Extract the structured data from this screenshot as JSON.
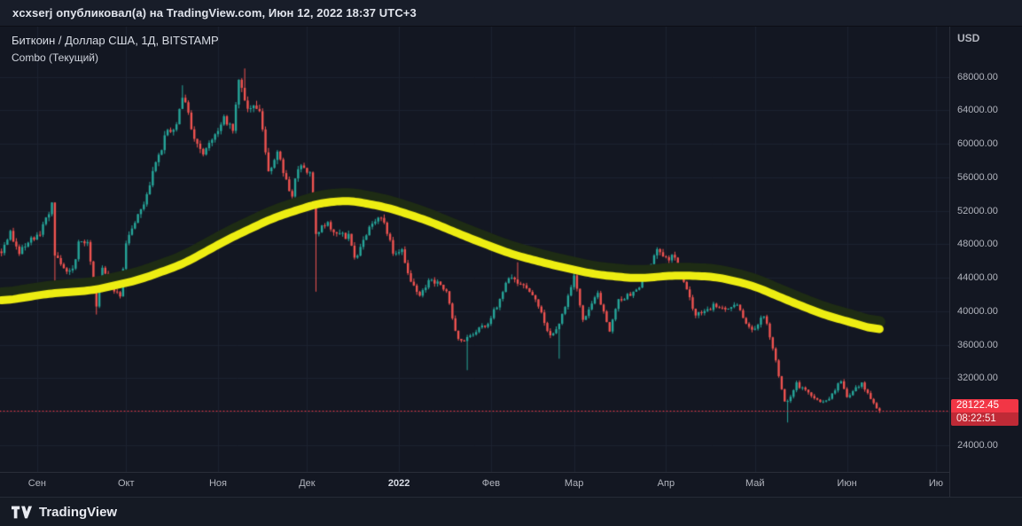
{
  "header": {
    "publication_text": "xcxserj опубликовал(а) на TradingView.com, Июн 12, 2022 18:37 UTC+3"
  },
  "legend": {
    "symbol_line": "Биткоин / Доллар США, 1Д, BITSTAMP",
    "indicator_line": "Combo (Текущий)"
  },
  "axes": {
    "currency": "USD",
    "last_price_label": "28122.45",
    "countdown": "08:22:51"
  },
  "footer": {
    "brand": "TradingView"
  },
  "colors": {
    "background": "#131722",
    "grid": "#1c2230",
    "up": "#26a69a",
    "down": "#ef5350",
    "price_line": "#f23645",
    "tag_bg": "#f23645",
    "tag_countdown_bg": "#bf2a36",
    "ma_yellow": "#eded12",
    "ma_dark": "#1e2c14",
    "axis_text": "#b2b5be",
    "text": "#d1d4dc",
    "border": "#2a2e39"
  },
  "chart_data": {
    "type": "candlestick",
    "title": "Биткоин / Доллар США, 1Д, BITSTAMP",
    "symbol": "Биткоин / Доллар США",
    "interval": "1Д",
    "exchange": "BITSTAMP",
    "indicator": "Combo (Текущий)",
    "currency": "USD",
    "last_price": 28122.45,
    "countdown": "08:22:51",
    "grid": true,
    "ylim": [
      20800,
      74000
    ],
    "y_ticks": [
      24000,
      28000,
      32000,
      36000,
      40000,
      44000,
      48000,
      52000,
      56000,
      60000,
      64000,
      68000
    ],
    "xlim": [
      "2021-08-20",
      "2022-07-05"
    ],
    "end_date": "2022-06-12",
    "x_months": [
      {
        "date": "2021-09-01",
        "label": "Сен"
      },
      {
        "date": "2021-10-01",
        "label": "Окт"
      },
      {
        "date": "2021-11-01",
        "label": "Ноя"
      },
      {
        "date": "2021-12-01",
        "label": "Дек"
      },
      {
        "date": "2022-01-01",
        "label": "2022",
        "year": true
      },
      {
        "date": "2022-02-01",
        "label": "Фев"
      },
      {
        "date": "2022-03-01",
        "label": "Мар"
      },
      {
        "date": "2022-04-01",
        "label": "Апр"
      },
      {
        "date": "2022-05-01",
        "label": "Май"
      },
      {
        "date": "2022-06-01",
        "label": "Июн"
      },
      {
        "date": "2022-07-01",
        "label": "Ию"
      }
    ],
    "close_keypoints": [
      [
        "2021-08-20",
        46760
      ],
      [
        "2021-08-23",
        49500
      ],
      [
        "2021-08-26",
        46850
      ],
      [
        "2021-08-29",
        48200
      ],
      [
        "2021-09-02",
        49250
      ],
      [
        "2021-09-06",
        52670
      ],
      [
        "2021-09-07",
        46860
      ],
      [
        "2021-09-10",
        44850
      ],
      [
        "2021-09-13",
        44950
      ],
      [
        "2021-09-15",
        48140
      ],
      [
        "2021-09-18",
        48300
      ],
      [
        "2021-09-21",
        40720
      ],
      [
        "2021-09-23",
        44890
      ],
      [
        "2021-09-26",
        43170
      ],
      [
        "2021-09-29",
        41550
      ],
      [
        "2021-10-01",
        48150
      ],
      [
        "2021-10-05",
        51490
      ],
      [
        "2021-10-08",
        53950
      ],
      [
        "2021-10-11",
        57480
      ],
      [
        "2021-10-15",
        61590
      ],
      [
        "2021-10-18",
        62030
      ],
      [
        "2021-10-20",
        65990
      ],
      [
        "2021-10-24",
        60690
      ],
      [
        "2021-10-27",
        58470
      ],
      [
        "2021-10-31",
        61320
      ],
      [
        "2021-11-03",
        62900
      ],
      [
        "2021-11-06",
        61500
      ],
      [
        "2021-11-08",
        67550
      ],
      [
        "2021-11-10",
        64940
      ],
      [
        "2021-11-12",
        64380
      ],
      [
        "2021-11-15",
        63620
      ],
      [
        "2021-11-18",
        56890
      ],
      [
        "2021-11-21",
        58720
      ],
      [
        "2021-11-26",
        53570
      ],
      [
        "2021-11-28",
        57270
      ],
      [
        "2021-12-02",
        56500
      ],
      [
        "2021-12-03",
        53600
      ],
      [
        "2021-12-04",
        49250
      ],
      [
        "2021-12-08",
        50500
      ],
      [
        "2021-12-11",
        49400
      ],
      [
        "2021-12-15",
        48900
      ],
      [
        "2021-12-17",
        46200
      ],
      [
        "2021-12-21",
        48940
      ],
      [
        "2021-12-23",
        50840
      ],
      [
        "2021-12-27",
        50700
      ],
      [
        "2021-12-30",
        47120
      ],
      [
        "2022-01-02",
        47340
      ],
      [
        "2022-01-05",
        43450
      ],
      [
        "2022-01-08",
        41680
      ],
      [
        "2022-01-12",
        43930
      ],
      [
        "2022-01-17",
        42250
      ],
      [
        "2022-01-21",
        36460
      ],
      [
        "2022-01-24",
        36680
      ],
      [
        "2022-01-28",
        37780
      ],
      [
        "2022-01-31",
        38480
      ],
      [
        "2022-02-04",
        41500
      ],
      [
        "2022-02-07",
        43840
      ],
      [
        "2022-02-10",
        43520
      ],
      [
        "2022-02-14",
        42560
      ],
      [
        "2022-02-17",
        40520
      ],
      [
        "2022-02-21",
        37000
      ],
      [
        "2022-02-24",
        38330
      ],
      [
        "2022-02-28",
        43190
      ],
      [
        "2022-03-01",
        44420
      ],
      [
        "2022-03-04",
        39130
      ],
      [
        "2022-03-09",
        41940
      ],
      [
        "2022-03-13",
        37790
      ],
      [
        "2022-03-16",
        41140
      ],
      [
        "2022-03-22",
        42370
      ],
      [
        "2022-03-25",
        44310
      ],
      [
        "2022-03-29",
        47470
      ],
      [
        "2022-04-01",
        46300
      ],
      [
        "2022-04-04",
        46620
      ],
      [
        "2022-04-07",
        43450
      ],
      [
        "2022-04-11",
        39520
      ],
      [
        "2022-04-14",
        39940
      ],
      [
        "2022-04-18",
        40800
      ],
      [
        "2022-04-21",
        40480
      ],
      [
        "2022-04-25",
        40440
      ],
      [
        "2022-04-30",
        37650
      ],
      [
        "2022-05-04",
        39690
      ],
      [
        "2022-05-08",
        34060
      ],
      [
        "2022-05-11",
        29100
      ],
      [
        "2022-05-12",
        29280
      ],
      [
        "2022-05-15",
        31300
      ],
      [
        "2022-05-19",
        30310
      ],
      [
        "2022-05-23",
        29100
      ],
      [
        "2022-05-26",
        29530
      ],
      [
        "2022-05-30",
        31720
      ],
      [
        "2022-06-01",
        29800
      ],
      [
        "2022-06-06",
        31370
      ],
      [
        "2022-06-10",
        29080
      ],
      [
        "2022-06-11",
        28400
      ],
      [
        "2022-06-12",
        28122.45
      ]
    ],
    "ma_keypoints": [
      [
        "2021-08-20",
        41200
      ],
      [
        "2021-09-05",
        42100
      ],
      [
        "2021-09-20",
        42500
      ],
      [
        "2021-10-05",
        43700
      ],
      [
        "2021-10-20",
        45600
      ],
      [
        "2021-11-05",
        48700
      ],
      [
        "2021-11-20",
        51200
      ],
      [
        "2021-12-05",
        52900
      ],
      [
        "2021-12-15",
        53250
      ],
      [
        "2021-12-28",
        52400
      ],
      [
        "2022-01-10",
        50900
      ],
      [
        "2022-01-25",
        48700
      ],
      [
        "2022-02-08",
        46800
      ],
      [
        "2022-02-22",
        45500
      ],
      [
        "2022-03-08",
        44400
      ],
      [
        "2022-03-22",
        43900
      ],
      [
        "2022-04-05",
        44300
      ],
      [
        "2022-04-18",
        44100
      ],
      [
        "2022-04-30",
        43100
      ],
      [
        "2022-05-12",
        41300
      ],
      [
        "2022-05-24",
        39600
      ],
      [
        "2022-06-04",
        38500
      ],
      [
        "2022-06-12",
        37650
      ]
    ],
    "spike_lows": {
      "2021-09-07": 42830,
      "2021-09-21": 39600,
      "2021-12-04": 42330,
      "2022-01-24": 32950,
      "2022-02-24": 34320,
      "2022-05-12": 26700,
      "2022-06-12": 27850
    },
    "spike_highs": {
      "2021-09-07": 52950,
      "2021-10-20": 66990,
      "2021-11-10": 69000,
      "2022-02-10": 45850
    }
  }
}
